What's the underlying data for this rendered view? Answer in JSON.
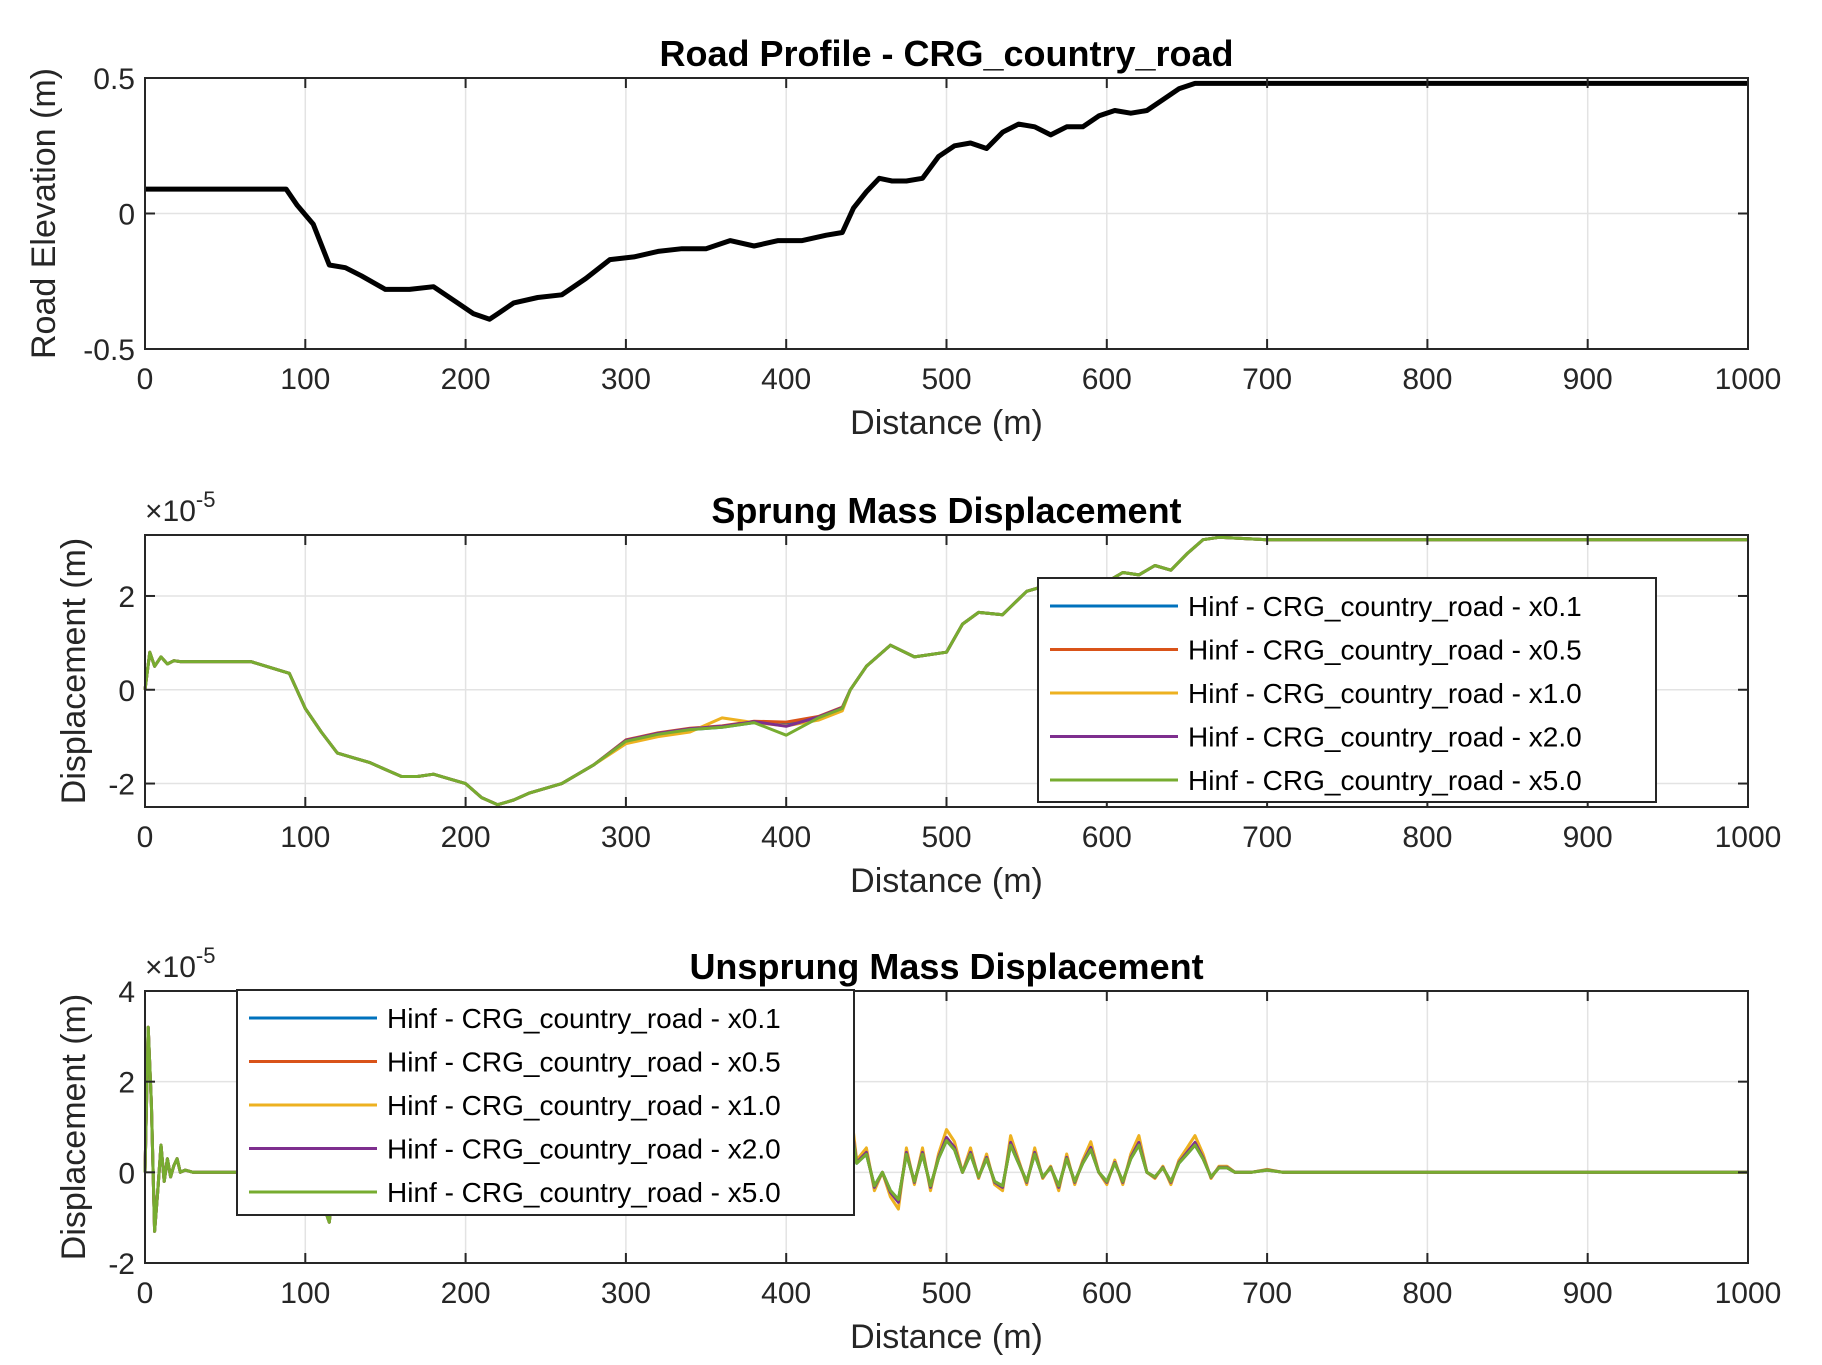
{
  "chart_data": [
    {
      "type": "line",
      "title": "Road Profile - CRG_country_road",
      "xlabel": "Distance (m)",
      "ylabel": "Road Elevation (m)",
      "xlim": [
        0,
        1000
      ],
      "ylim": [
        -0.5,
        0.5
      ],
      "xticks": [
        "0",
        "100",
        "200",
        "300",
        "400",
        "500",
        "600",
        "700",
        "800",
        "900",
        "1000"
      ],
      "yticks": [
        "-0.5",
        "0",
        "0.5"
      ],
      "grid": true,
      "series": [
        {
          "color": "#000000",
          "x": [
            0,
            88,
            95,
            105,
            115,
            125,
            135,
            150,
            165,
            180,
            195,
            205,
            215,
            220,
            230,
            245,
            260,
            275,
            290,
            305,
            320,
            335,
            350,
            365,
            380,
            395,
            410,
            425,
            435,
            442,
            450,
            458,
            466,
            475,
            485,
            495,
            505,
            515,
            525,
            535,
            545,
            555,
            565,
            575,
            585,
            595,
            605,
            615,
            625,
            635,
            645,
            655,
            660,
            700,
            800,
            900,
            1000
          ],
          "y": [
            0.09,
            0.09,
            0.03,
            -0.04,
            -0.19,
            -0.2,
            -0.23,
            -0.28,
            -0.28,
            -0.27,
            -0.33,
            -0.37,
            -0.39,
            -0.37,
            -0.33,
            -0.31,
            -0.3,
            -0.24,
            -0.17,
            -0.16,
            -0.14,
            -0.13,
            -0.13,
            -0.1,
            -0.12,
            -0.1,
            -0.1,
            -0.08,
            -0.07,
            0.02,
            0.08,
            0.13,
            0.12,
            0.12,
            0.13,
            0.21,
            0.25,
            0.26,
            0.24,
            0.3,
            0.33,
            0.32,
            0.29,
            0.32,
            0.32,
            0.36,
            0.38,
            0.37,
            0.38,
            0.42,
            0.46,
            0.48,
            0.48,
            0.48,
            0.48,
            0.48,
            0.48
          ]
        }
      ]
    },
    {
      "type": "line",
      "title": "Sprung Mass Displacement",
      "xlabel": "Distance (m)",
      "ylabel": "Displacement (m)",
      "exponent_base": "×10",
      "exponent_power": "-5",
      "xlim": [
        0,
        1000
      ],
      "ylim": [
        -2.5,
        3.3
      ],
      "xticks": [
        "0",
        "100",
        "200",
        "300",
        "400",
        "500",
        "600",
        "700",
        "800",
        "900",
        "1000"
      ],
      "yticks": [
        "-2",
        "0",
        "2"
      ],
      "grid": true,
      "legend": "right",
      "series": [
        {
          "name": "Hinf - CRG_country_road - x0.1",
          "color": "#0072BD"
        },
        {
          "name": "Hinf - CRG_country_road - x0.5",
          "color": "#D95319"
        },
        {
          "name": "Hinf - CRG_country_road - x1.0",
          "color": "#EDB120"
        },
        {
          "name": "Hinf - CRG_country_road - x2.0",
          "color": "#7E2F8E"
        },
        {
          "name": "Hinf - CRG_country_road - x5.0",
          "color": "#77AC30"
        }
      ],
      "x": [
        0,
        3,
        6,
        10,
        14,
        18,
        22,
        30,
        50,
        66,
        90,
        100,
        110,
        120,
        130,
        140,
        150,
        160,
        170,
        180,
        190,
        200,
        210,
        220,
        230,
        240,
        260,
        280,
        300,
        320,
        340,
        360,
        380,
        400,
        420,
        435,
        440,
        450,
        465,
        480,
        500,
        510,
        520,
        535,
        550,
        570,
        580,
        600,
        610,
        620,
        630,
        640,
        650,
        660,
        670,
        700,
        800,
        900,
        1000
      ],
      "base": [
        0,
        0.8,
        0.5,
        0.7,
        0.55,
        0.62,
        0.6,
        0.6,
        0.6,
        0.6,
        0.35,
        -0.4,
        -0.9,
        -1.35,
        -1.45,
        -1.55,
        -1.7,
        -1.85,
        -1.85,
        -1.8,
        -1.9,
        -2.0,
        -2.3,
        -2.45,
        -2.35,
        -2.2,
        -2.0,
        -1.6,
        -1.1,
        -0.95,
        -0.85,
        -0.8,
        -0.7,
        -0.72,
        -0.6,
        -0.4,
        0.0,
        0.5,
        0.95,
        0.7,
        0.8,
        1.4,
        1.65,
        1.6,
        2.1,
        2.3,
        2.35,
        2.3,
        2.5,
        2.45,
        2.65,
        2.55,
        2.9,
        3.2,
        3.25,
        3.2,
        3.2,
        3.2,
        3.2
      ]
    },
    {
      "type": "line",
      "title": "Unsprung Mass Displacement",
      "xlabel": "Distance (m)",
      "ylabel": "Displacement (m)",
      "exponent_base": "×10",
      "exponent_power": "-5",
      "xlim": [
        0,
        1000
      ],
      "ylim": [
        -2,
        4
      ],
      "xticks": [
        "0",
        "100",
        "200",
        "300",
        "400",
        "500",
        "600",
        "700",
        "800",
        "900",
        "1000"
      ],
      "yticks": [
        "-2",
        "0",
        "2",
        "4"
      ],
      "grid": true,
      "legend": "top-left",
      "series": [
        {
          "name": "Hinf - CRG_country_road - x0.1",
          "color": "#0072BD"
        },
        {
          "name": "Hinf - CRG_country_road - x0.5",
          "color": "#D95319"
        },
        {
          "name": "Hinf - CRG_country_road - x1.0",
          "color": "#EDB120"
        },
        {
          "name": "Hinf - CRG_country_road - x2.0",
          "color": "#7E2F8E"
        },
        {
          "name": "Hinf - CRG_country_road - x5.0",
          "color": "#77AC30"
        }
      ],
      "x": [
        0,
        2,
        4,
        6,
        8,
        10,
        12,
        14,
        16,
        18,
        20,
        22,
        25,
        30,
        35,
        40,
        60,
        90,
        110,
        113,
        115,
        117,
        120,
        150,
        200,
        300,
        400,
        430,
        437,
        440,
        444,
        450,
        455,
        460,
        465,
        470,
        475,
        480,
        485,
        490,
        495,
        500,
        505,
        510,
        515,
        520,
        525,
        530,
        535,
        540,
        545,
        550,
        555,
        560,
        565,
        570,
        575,
        580,
        585,
        590,
        595,
        600,
        605,
        610,
        615,
        620,
        625,
        630,
        635,
        640,
        645,
        650,
        655,
        660,
        665,
        670,
        675,
        680,
        690,
        700,
        710,
        720,
        800,
        900,
        1000
      ],
      "base": [
        0,
        3.2,
        1.5,
        -1.3,
        -0.4,
        0.6,
        -0.2,
        0.3,
        -0.1,
        0.15,
        0.3,
        0.0,
        0.05,
        0.0,
        0.0,
        0.0,
        0.0,
        0.0,
        0.0,
        -0.9,
        -1.1,
        -0.4,
        0.0,
        0.0,
        0.0,
        0.0,
        0.0,
        0.0,
        0.3,
        1.1,
        0.2,
        0.4,
        -0.3,
        0.0,
        -0.4,
        -0.6,
        0.4,
        -0.2,
        0.4,
        -0.3,
        0.3,
        0.7,
        0.5,
        0.0,
        0.4,
        -0.1,
        0.3,
        -0.2,
        -0.3,
        0.6,
        0.2,
        -0.2,
        0.4,
        -0.1,
        0.1,
        -0.3,
        0.3,
        -0.2,
        0.2,
        0.5,
        0.0,
        -0.2,
        0.2,
        -0.2,
        0.3,
        0.6,
        0.0,
        -0.1,
        0.1,
        -0.2,
        0.2,
        0.4,
        0.6,
        0.3,
        -0.1,
        0.1,
        0.1,
        0.0,
        0.0,
        0.05,
        0.0,
        0.0,
        0.0,
        0.0,
        0.0
      ]
    }
  ]
}
